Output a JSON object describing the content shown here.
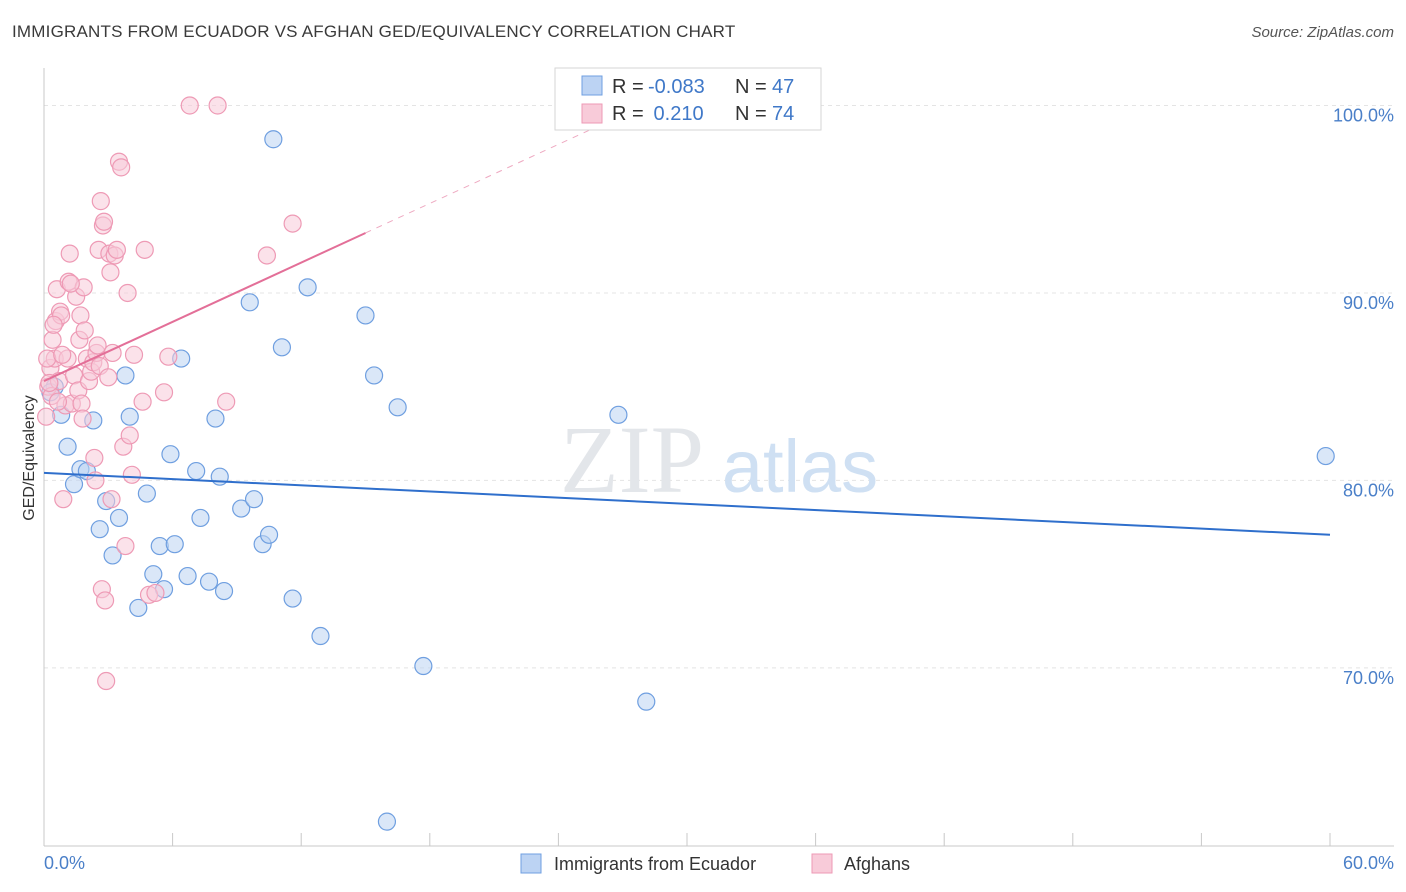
{
  "title": "IMMIGRANTS FROM ECUADOR VS AFGHAN GED/EQUIVALENCY CORRELATION CHART",
  "source": "Source: ZipAtlas.com",
  "watermark": {
    "zip": "ZIP",
    "atlas": "atlas"
  },
  "chart_data": {
    "type": "scatter",
    "ylabel": "GED/Equivalency",
    "xlim": [
      0,
      60
    ],
    "ylim": [
      60.5,
      102
    ],
    "x_tick_labels": {
      "left": "0.0%",
      "right": "60.0%"
    },
    "y_ticks": [
      {
        "value": 100,
        "label": "100.0%"
      },
      {
        "value": 90,
        "label": "90.0%"
      },
      {
        "value": 80,
        "label": "80.0%"
      },
      {
        "value": 70,
        "label": "70.0%"
      }
    ],
    "stats": [
      {
        "r_label": "R =",
        "r": "-0.083",
        "n_label": "N =",
        "n": "47"
      },
      {
        "r_label": "R =",
        "r": " 0.210",
        "n_label": "N =",
        "n": "74"
      }
    ],
    "series": [
      {
        "name": "Immigrants from Ecuador",
        "color": "#6f9fe0",
        "fill": "#bcd3f3",
        "line_color": "#2f6fcc",
        "trend": {
          "x": [
            0,
            60
          ],
          "y": [
            80.4,
            77.1
          ]
        },
        "points": [
          [
            0.5,
            85.0
          ],
          [
            0.8,
            83.5
          ],
          [
            1.1,
            81.8
          ],
          [
            1.4,
            79.8
          ],
          [
            1.7,
            80.6
          ],
          [
            2.0,
            80.5
          ],
          [
            2.3,
            83.2
          ],
          [
            2.6,
            77.4
          ],
          [
            2.9,
            78.9
          ],
          [
            3.2,
            76.0
          ],
          [
            3.5,
            78.0
          ],
          [
            3.8,
            85.6
          ],
          [
            4.0,
            83.4
          ],
          [
            4.4,
            73.2
          ],
          [
            4.8,
            79.3
          ],
          [
            5.1,
            75.0
          ],
          [
            5.4,
            76.5
          ],
          [
            5.6,
            74.2
          ],
          [
            5.9,
            81.4
          ],
          [
            6.1,
            76.6
          ],
          [
            6.4,
            86.5
          ],
          [
            6.7,
            74.9
          ],
          [
            7.1,
            80.5
          ],
          [
            7.3,
            78.0
          ],
          [
            7.7,
            74.6
          ],
          [
            8.0,
            83.3
          ],
          [
            8.2,
            80.2
          ],
          [
            8.4,
            74.1
          ],
          [
            9.2,
            78.5
          ],
          [
            9.6,
            89.5
          ],
          [
            9.8,
            79.0
          ],
          [
            10.2,
            76.6
          ],
          [
            10.5,
            77.1
          ],
          [
            10.7,
            98.2
          ],
          [
            11.1,
            87.1
          ],
          [
            11.6,
            73.7
          ],
          [
            12.3,
            90.3
          ],
          [
            12.9,
            71.7
          ],
          [
            15.0,
            88.8
          ],
          [
            15.4,
            85.6
          ],
          [
            16.0,
            61.8
          ],
          [
            16.5,
            83.9
          ],
          [
            17.7,
            70.1
          ],
          [
            26.8,
            83.5
          ],
          [
            28.1,
            68.2
          ],
          [
            59.8,
            81.3
          ],
          [
            0.3,
            84.7
          ]
        ]
      },
      {
        "name": "Afghans",
        "color": "#ee9ab5",
        "fill": "#f8cbd9",
        "line_color": "#e36f98",
        "trend": {
          "x": [
            0,
            15
          ],
          "y": [
            85.3,
            93.2
          ]
        },
        "trend_dashed": {
          "x": [
            15,
            27
          ],
          "y": [
            93.2,
            99.5
          ]
        },
        "points": [
          [
            0.1,
            83.4
          ],
          [
            0.2,
            85.0
          ],
          [
            0.3,
            86.0
          ],
          [
            0.35,
            84.5
          ],
          [
            0.4,
            87.5
          ],
          [
            0.5,
            86.5
          ],
          [
            0.55,
            88.5
          ],
          [
            0.6,
            90.2
          ],
          [
            0.7,
            85.3
          ],
          [
            0.75,
            89.0
          ],
          [
            0.8,
            88.8
          ],
          [
            0.9,
            79.0
          ],
          [
            1.0,
            84.0
          ],
          [
            1.1,
            86.5
          ],
          [
            1.15,
            90.6
          ],
          [
            1.2,
            92.1
          ],
          [
            1.3,
            84.1
          ],
          [
            1.4,
            85.6
          ],
          [
            1.5,
            89.8
          ],
          [
            1.6,
            84.8
          ],
          [
            1.65,
            87.5
          ],
          [
            1.7,
            88.8
          ],
          [
            1.75,
            84.1
          ],
          [
            1.8,
            83.3
          ],
          [
            1.85,
            90.3
          ],
          [
            1.9,
            88.0
          ],
          [
            2.0,
            86.5
          ],
          [
            2.1,
            85.3
          ],
          [
            2.2,
            85.8
          ],
          [
            2.3,
            86.3
          ],
          [
            2.35,
            81.2
          ],
          [
            2.4,
            80.0
          ],
          [
            2.45,
            86.8
          ],
          [
            2.5,
            87.2
          ],
          [
            2.55,
            92.3
          ],
          [
            2.6,
            86.1
          ],
          [
            2.65,
            94.9
          ],
          [
            2.7,
            74.2
          ],
          [
            2.75,
            93.6
          ],
          [
            2.8,
            93.8
          ],
          [
            2.85,
            73.6
          ],
          [
            2.9,
            69.3
          ],
          [
            3.0,
            85.5
          ],
          [
            3.05,
            92.1
          ],
          [
            3.1,
            91.1
          ],
          [
            3.15,
            79.0
          ],
          [
            3.2,
            86.8
          ],
          [
            3.3,
            92.0
          ],
          [
            3.4,
            92.3
          ],
          [
            3.5,
            97.0
          ],
          [
            3.6,
            96.7
          ],
          [
            3.7,
            81.8
          ],
          [
            3.8,
            76.5
          ],
          [
            3.9,
            90.0
          ],
          [
            4.0,
            82.4
          ],
          [
            4.1,
            80.3
          ],
          [
            4.2,
            86.7
          ],
          [
            4.6,
            84.2
          ],
          [
            4.7,
            92.3
          ],
          [
            4.9,
            73.9
          ],
          [
            5.2,
            74.0
          ],
          [
            5.6,
            84.7
          ],
          [
            5.8,
            86.6
          ],
          [
            6.8,
            100.0
          ],
          [
            8.1,
            100.0
          ],
          [
            8.5,
            84.2
          ],
          [
            10.4,
            92.0
          ],
          [
            11.6,
            93.7
          ],
          [
            0.15,
            86.5
          ],
          [
            0.25,
            85.2
          ],
          [
            0.45,
            88.3
          ],
          [
            0.65,
            84.2
          ],
          [
            0.85,
            86.7
          ],
          [
            1.25,
            90.5
          ]
        ]
      }
    ]
  }
}
